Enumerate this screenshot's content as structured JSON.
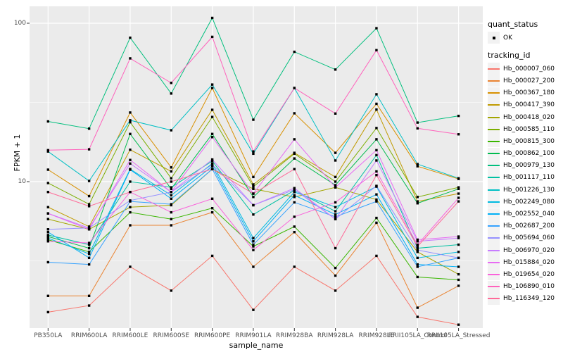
{
  "figure": {
    "background": "#FFFFFF",
    "panel_background": "#EBEBEB",
    "grid_color": "#FFFFFF",
    "tick_color": "#333333",
    "tick_text_color": "#4D4D4D",
    "point_color": "#000000"
  },
  "legend": {
    "quant_status_title": "quant_status",
    "quant_status_items": [
      {
        "label": "OK"
      }
    ],
    "tracking_id_title": "tracking_id"
  },
  "chart_data": {
    "type": "line",
    "title": "",
    "xlabel": "sample_name",
    "ylabel": "FPKM + 1",
    "y_scale": "log10",
    "ylim": [
      1,
      120
    ],
    "y_major_ticks": [
      {
        "label": "100",
        "value": 100
      },
      {
        "label": "10",
        "value": 10
      }
    ],
    "y_minor_ticks": [
      31.623,
      3.1623
    ],
    "grid": true,
    "legend_position": "right",
    "point_shape": "filled-square-black",
    "categories": [
      "PB350LA",
      "RRIM600LA",
      "RRIM600LE",
      "RRIM600SE",
      "RRIM600PE",
      "RRIM901LA",
      "RRIM928BA",
      "RRIM928LA",
      "RRIM928LE",
      "RRII105LA_Control",
      "RRII105LA_Stressed"
    ],
    "series": [
      {
        "name": "Hb_000007_060",
        "color": "#F8766D",
        "values": [
          1.5,
          1.65,
          2.9,
          2.05,
          3.4,
          1.55,
          2.9,
          2.05,
          3.4,
          1.4,
          1.25
        ]
      },
      {
        "name": "Hb_000027_200",
        "color": "#EA8331",
        "values": [
          1.9,
          1.9,
          5.3,
          5.3,
          6.4,
          2.9,
          4.8,
          2.55,
          5.5,
          1.6,
          2.2
        ]
      },
      {
        "name": "Hb_000367_180",
        "color": "#D89000",
        "values": [
          11.9,
          8.1,
          27.3,
          12.3,
          39,
          10.7,
          27,
          15.2,
          31,
          12.5,
          10.4
        ]
      },
      {
        "name": "Hb_000417_390",
        "color": "#C09B00",
        "values": [
          6.9,
          5.2,
          15.9,
          11.6,
          28.4,
          9.6,
          15.2,
          10.7,
          28.5,
          7.5,
          8.4
        ]
      },
      {
        "name": "Hb_000418_020",
        "color": "#A3A500",
        "values": [
          5.8,
          5.0,
          6.9,
          7.1,
          12.0,
          9.0,
          8.0,
          9.2,
          7.7,
          3.6,
          2.6
        ]
      },
      {
        "name": "Hb_000585_110",
        "color": "#7CAE00",
        "values": [
          9.8,
          7.2,
          23.7,
          10.5,
          25.6,
          9.3,
          15.0,
          10.0,
          21.8,
          8.0,
          9.2
        ]
      },
      {
        "name": "Hb_000815_300",
        "color": "#39B600",
        "values": [
          4.3,
          3.6,
          6.4,
          5.8,
          6.8,
          3.9,
          5.2,
          2.85,
          5.9,
          2.5,
          2.4
        ]
      },
      {
        "name": "Hb_000862_100",
        "color": "#00BB4E",
        "values": [
          4.5,
          3.8,
          20.0,
          9.0,
          20.0,
          8.0,
          14.0,
          9.5,
          18.5,
          7.3,
          9.0
        ]
      },
      {
        "name": "Hb_000979_130",
        "color": "#00BF7D",
        "values": [
          24,
          21.6,
          81,
          36,
          108,
          24.6,
          66,
          51,
          93,
          23.6,
          26
        ]
      },
      {
        "name": "Hb_001117_110",
        "color": "#00C1A3",
        "values": [
          4.6,
          4.0,
          10.0,
          9.2,
          13.5,
          6.2,
          8.8,
          6.5,
          14.7,
          3.8,
          4.0
        ]
      },
      {
        "name": "Hb_001226_130",
        "color": "#00BFC4",
        "values": [
          15.5,
          10.1,
          24.4,
          21.1,
          41,
          15.0,
          39,
          13.6,
          35.6,
          12.9,
          10.5
        ]
      },
      {
        "name": "Hb_002249_080",
        "color": "#00BAE0",
        "values": [
          4.4,
          3.5,
          12.0,
          8.2,
          13.0,
          4.4,
          8.6,
          6.9,
          9.3,
          3.3,
          3.6
        ]
      },
      {
        "name": "Hb_002552_040",
        "color": "#00B0F6",
        "values": [
          4.8,
          3.3,
          11.9,
          7.8,
          12.5,
          4.2,
          8.2,
          6.2,
          8.3,
          3.0,
          2.9
        ]
      },
      {
        "name": "Hb_002687_200",
        "color": "#35A2FF",
        "values": [
          3.1,
          3.0,
          7.5,
          7.2,
          12.0,
          4.0,
          7.4,
          6.0,
          7.5,
          2.9,
          3.3
        ]
      },
      {
        "name": "Hb_005694_060",
        "color": "#9590FF",
        "values": [
          5.0,
          5.1,
          7.6,
          8.6,
          12.8,
          7.1,
          8.9,
          5.8,
          9.4,
          3.7,
          3.3
        ]
      },
      {
        "name": "Hb_006970_020",
        "color": "#C77CFF",
        "values": [
          6.3,
          5.1,
          13.0,
          8.6,
          13.8,
          7.1,
          9.1,
          5.8,
          13.6,
          4.2,
          4.4
        ]
      },
      {
        "name": "Hb_015884_020",
        "color": "#E76BF3",
        "values": [
          6.3,
          5.0,
          13.7,
          8.6,
          19.1,
          8.4,
          18.5,
          9.2,
          15.8,
          4.3,
          4.5
        ]
      },
      {
        "name": "Hb_019654_020",
        "color": "#FA62DB",
        "values": [
          4.2,
          4.1,
          8.6,
          6.4,
          7.8,
          3.7,
          6.0,
          7.4,
          11.6,
          4.0,
          7.9
        ]
      },
      {
        "name": "Hb_106890_010",
        "color": "#FF62BC",
        "values": [
          15.8,
          16.0,
          60,
          42,
          82,
          15.5,
          39,
          26.9,
          67.6,
          21.7,
          19.9
        ]
      },
      {
        "name": "Hb_116349_120",
        "color": "#FF6A98",
        "values": [
          8.6,
          7.0,
          8.6,
          10.0,
          12.0,
          8.4,
          12.0,
          3.8,
          11.0,
          3.9,
          7.5
        ]
      }
    ]
  }
}
